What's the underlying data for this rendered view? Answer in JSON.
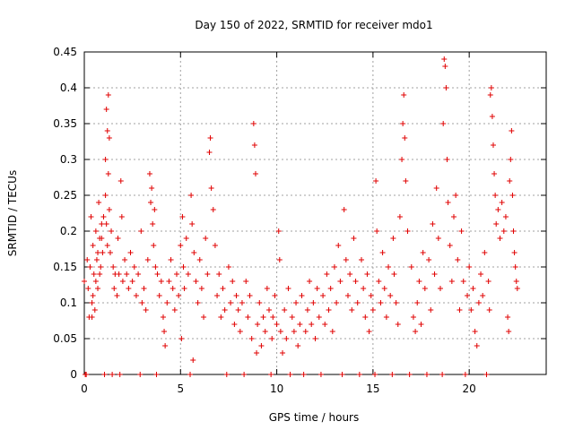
{
  "chart_data": {
    "type": "scatter",
    "title": "Day 150 of 2022, SRMTID for receiver mdo1",
    "xlabel": "GPS time / hours",
    "ylabel": "SRMTID / TECUs",
    "xlim": [
      0,
      24
    ],
    "ylim": [
      0,
      0.45
    ],
    "xticks": [
      0,
      5,
      10,
      15,
      20
    ],
    "yticks": [
      0,
      0.05,
      0.1,
      0.15,
      0.2,
      0.25,
      0.3,
      0.35,
      0.4,
      0.45
    ],
    "xtick_labels": [
      "0",
      "5",
      "10",
      "15",
      "20"
    ],
    "ytick_labels": [
      "0",
      "0.05",
      "0.1",
      "0.15",
      "0.2",
      "0.25",
      "0.3",
      "0.35",
      "0.4",
      "0.45"
    ],
    "grid": true,
    "marker": "+",
    "color": "#e00000",
    "series": [
      {
        "name": "SRMTID",
        "points": [
          [
            0.0,
            0.13
          ],
          [
            0.05,
            0.0
          ],
          [
            0.1,
            0.0
          ],
          [
            0.15,
            0.16
          ],
          [
            0.2,
            0.12
          ],
          [
            0.25,
            0.08
          ],
          [
            0.3,
            0.15
          ],
          [
            0.35,
            0.22
          ],
          [
            0.4,
            0.1
          ],
          [
            0.45,
            0.18
          ],
          [
            0.5,
            0.14
          ],
          [
            0.55,
            0.09
          ],
          [
            0.6,
            0.2
          ],
          [
            0.65,
            0.16
          ],
          [
            0.7,
            0.12
          ],
          [
            0.75,
            0.24
          ],
          [
            0.8,
            0.19
          ],
          [
            0.85,
            0.15
          ],
          [
            0.9,
            0.21
          ],
          [
            0.95,
            0.17
          ],
          [
            0.4,
            0.08
          ],
          [
            0.45,
            0.11
          ],
          [
            0.6,
            0.13
          ],
          [
            0.7,
            0.17
          ],
          [
            0.8,
            0.14
          ],
          [
            0.9,
            0.19
          ],
          [
            1.0,
            0.22
          ],
          [
            1.05,
            0.0
          ],
          [
            1.1,
            0.3
          ],
          [
            1.15,
            0.37
          ],
          [
            1.2,
            0.34
          ],
          [
            1.25,
            0.39
          ],
          [
            1.3,
            0.33
          ],
          [
            1.1,
            0.25
          ],
          [
            1.15,
            0.21
          ],
          [
            1.2,
            0.18
          ],
          [
            1.25,
            0.28
          ],
          [
            1.3,
            0.23
          ],
          [
            1.35,
            0.17
          ],
          [
            1.4,
            0.2
          ],
          [
            1.45,
            0.0
          ],
          [
            1.5,
            0.15
          ],
          [
            1.55,
            0.12
          ],
          [
            1.6,
            0.14
          ],
          [
            1.7,
            0.11
          ],
          [
            1.75,
            0.19
          ],
          [
            1.8,
            0.14
          ],
          [
            1.85,
            0.0
          ],
          [
            1.9,
            0.27
          ],
          [
            1.95,
            0.22
          ],
          [
            2.0,
            0.13
          ],
          [
            2.1,
            0.16
          ],
          [
            2.2,
            0.14
          ],
          [
            2.3,
            0.12
          ],
          [
            2.4,
            0.17
          ],
          [
            2.5,
            0.13
          ],
          [
            2.6,
            0.15
          ],
          [
            2.7,
            0.11
          ],
          [
            2.8,
            0.14
          ],
          [
            2.9,
            0.0
          ],
          [
            2.95,
            0.2
          ],
          [
            3.0,
            0.1
          ],
          [
            3.1,
            0.12
          ],
          [
            3.2,
            0.09
          ],
          [
            3.3,
            0.16
          ],
          [
            3.4,
            0.28
          ],
          [
            3.45,
            0.24
          ],
          [
            3.5,
            0.26
          ],
          [
            3.55,
            0.21
          ],
          [
            3.6,
            0.18
          ],
          [
            3.65,
            0.23
          ],
          [
            3.7,
            0.15
          ],
          [
            3.75,
            0.0
          ],
          [
            3.8,
            0.14
          ],
          [
            3.9,
            0.11
          ],
          [
            4.0,
            0.13
          ],
          [
            4.1,
            0.08
          ],
          [
            4.15,
            0.06
          ],
          [
            4.2,
            0.04
          ],
          [
            4.3,
            0.1
          ],
          [
            4.4,
            0.13
          ],
          [
            4.5,
            0.16
          ],
          [
            4.6,
            0.12
          ],
          [
            4.7,
            0.09
          ],
          [
            4.8,
            0.14
          ],
          [
            4.9,
            0.11
          ],
          [
            5.0,
            0.18
          ],
          [
            5.05,
            0.05
          ],
          [
            5.1,
            0.22
          ],
          [
            5.15,
            0.15
          ],
          [
            5.2,
            0.12
          ],
          [
            5.3,
            0.19
          ],
          [
            5.4,
            0.14
          ],
          [
            5.5,
            0.0
          ],
          [
            5.55,
            0.25
          ],
          [
            5.6,
            0.21
          ],
          [
            5.65,
            0.02
          ],
          [
            5.7,
            0.17
          ],
          [
            5.8,
            0.13
          ],
          [
            5.9,
            0.1
          ],
          [
            6.0,
            0.16
          ],
          [
            6.1,
            0.12
          ],
          [
            6.2,
            0.08
          ],
          [
            6.3,
            0.19
          ],
          [
            6.4,
            0.14
          ],
          [
            6.5,
            0.31
          ],
          [
            6.55,
            0.33
          ],
          [
            6.6,
            0.26
          ],
          [
            6.7,
            0.23
          ],
          [
            6.8,
            0.18
          ],
          [
            6.9,
            0.11
          ],
          [
            7.0,
            0.14
          ],
          [
            7.1,
            0.08
          ],
          [
            7.2,
            0.12
          ],
          [
            7.3,
            0.09
          ],
          [
            7.4,
            0.0
          ],
          [
            7.5,
            0.15
          ],
          [
            7.6,
            0.1
          ],
          [
            7.7,
            0.13
          ],
          [
            7.8,
            0.07
          ],
          [
            7.9,
            0.11
          ],
          [
            8.0,
            0.09
          ],
          [
            8.1,
            0.06
          ],
          [
            8.2,
            0.1
          ],
          [
            8.3,
            0.0
          ],
          [
            8.4,
            0.13
          ],
          [
            8.5,
            0.08
          ],
          [
            8.6,
            0.11
          ],
          [
            8.7,
            0.05
          ],
          [
            8.8,
            0.35
          ],
          [
            8.85,
            0.32
          ],
          [
            8.9,
            0.28
          ],
          [
            8.95,
            0.03
          ],
          [
            9.0,
            0.07
          ],
          [
            9.1,
            0.1
          ],
          [
            9.2,
            0.04
          ],
          [
            9.3,
            0.08
          ],
          [
            9.4,
            0.06
          ],
          [
            9.5,
            0.12
          ],
          [
            9.6,
            0.09
          ],
          [
            9.7,
            0.0
          ],
          [
            9.75,
            0.05
          ],
          [
            9.8,
            0.08
          ],
          [
            9.9,
            0.11
          ],
          [
            10.0,
            0.07
          ],
          [
            10.1,
            0.2
          ],
          [
            10.15,
            0.16
          ],
          [
            10.2,
            0.06
          ],
          [
            10.3,
            0.03
          ],
          [
            10.4,
            0.09
          ],
          [
            10.5,
            0.05
          ],
          [
            10.6,
            0.12
          ],
          [
            10.7,
            0.0
          ],
          [
            10.8,
            0.08
          ],
          [
            10.9,
            0.06
          ],
          [
            11.0,
            0.1
          ],
          [
            11.1,
            0.04
          ],
          [
            11.2,
            0.07
          ],
          [
            11.3,
            0.11
          ],
          [
            11.4,
            0.0
          ],
          [
            11.5,
            0.06
          ],
          [
            11.6,
            0.09
          ],
          [
            11.7,
            0.13
          ],
          [
            11.8,
            0.07
          ],
          [
            11.9,
            0.1
          ],
          [
            12.0,
            0.05
          ],
          [
            12.1,
            0.12
          ],
          [
            12.2,
            0.08
          ],
          [
            12.3,
            0.0
          ],
          [
            12.4,
            0.11
          ],
          [
            12.5,
            0.07
          ],
          [
            12.6,
            0.14
          ],
          [
            12.7,
            0.09
          ],
          [
            12.8,
            0.12
          ],
          [
            12.9,
            0.06
          ],
          [
            13.0,
            0.15
          ],
          [
            13.1,
            0.1
          ],
          [
            13.2,
            0.18
          ],
          [
            13.3,
            0.13
          ],
          [
            13.4,
            0.0
          ],
          [
            13.5,
            0.23
          ],
          [
            13.6,
            0.16
          ],
          [
            13.7,
            0.11
          ],
          [
            13.8,
            0.14
          ],
          [
            13.9,
            0.09
          ],
          [
            14.0,
            0.19
          ],
          [
            14.1,
            0.13
          ],
          [
            14.2,
            0.1
          ],
          [
            14.3,
            0.0
          ],
          [
            14.4,
            0.16
          ],
          [
            14.5,
            0.12
          ],
          [
            14.6,
            0.08
          ],
          [
            14.7,
            0.14
          ],
          [
            14.8,
            0.06
          ],
          [
            14.9,
            0.11
          ],
          [
            15.0,
            0.09
          ],
          [
            15.1,
            0.0
          ],
          [
            15.15,
            0.27
          ],
          [
            15.2,
            0.2
          ],
          [
            15.3,
            0.13
          ],
          [
            15.4,
            0.1
          ],
          [
            15.5,
            0.17
          ],
          [
            15.6,
            0.12
          ],
          [
            15.7,
            0.08
          ],
          [
            15.8,
            0.15
          ],
          [
            15.9,
            0.11
          ],
          [
            16.0,
            0.0
          ],
          [
            16.05,
            0.19
          ],
          [
            16.1,
            0.14
          ],
          [
            16.2,
            0.1
          ],
          [
            16.3,
            0.07
          ],
          [
            16.4,
            0.22
          ],
          [
            16.5,
            0.3
          ],
          [
            16.55,
            0.35
          ],
          [
            16.6,
            0.39
          ],
          [
            16.65,
            0.33
          ],
          [
            16.7,
            0.27
          ],
          [
            16.8,
            0.2
          ],
          [
            16.9,
            0.0
          ],
          [
            17.0,
            0.15
          ],
          [
            17.1,
            0.08
          ],
          [
            17.2,
            0.06
          ],
          [
            17.3,
            0.1
          ],
          [
            17.4,
            0.13
          ],
          [
            17.5,
            0.07
          ],
          [
            17.6,
            0.17
          ],
          [
            17.7,
            0.12
          ],
          [
            17.8,
            0.0
          ],
          [
            17.9,
            0.16
          ],
          [
            18.0,
            0.09
          ],
          [
            18.1,
            0.21
          ],
          [
            18.2,
            0.14
          ],
          [
            18.3,
            0.26
          ],
          [
            18.4,
            0.19
          ],
          [
            18.5,
            0.12
          ],
          [
            18.6,
            0.0
          ],
          [
            18.65,
            0.35
          ],
          [
            18.7,
            0.44
          ],
          [
            18.75,
            0.43
          ],
          [
            18.8,
            0.4
          ],
          [
            18.85,
            0.3
          ],
          [
            18.9,
            0.24
          ],
          [
            19.0,
            0.18
          ],
          [
            19.1,
            0.13
          ],
          [
            19.2,
            0.22
          ],
          [
            19.3,
            0.25
          ],
          [
            19.4,
            0.16
          ],
          [
            19.5,
            0.09
          ],
          [
            19.6,
            0.2
          ],
          [
            19.7,
            0.13
          ],
          [
            19.8,
            0.0
          ],
          [
            19.9,
            0.11
          ],
          [
            20.0,
            0.15
          ],
          [
            20.1,
            0.09
          ],
          [
            20.2,
            0.12
          ],
          [
            20.3,
            0.06
          ],
          [
            20.4,
            0.04
          ],
          [
            20.5,
            0.1
          ],
          [
            20.6,
            0.14
          ],
          [
            20.7,
            0.11
          ],
          [
            20.8,
            0.17
          ],
          [
            20.9,
            0.0
          ],
          [
            21.0,
            0.13
          ],
          [
            21.05,
            0.09
          ],
          [
            21.1,
            0.39
          ],
          [
            21.15,
            0.4
          ],
          [
            21.2,
            0.36
          ],
          [
            21.25,
            0.32
          ],
          [
            21.3,
            0.28
          ],
          [
            21.35,
            0.25
          ],
          [
            21.4,
            0.21
          ],
          [
            21.5,
            0.23
          ],
          [
            21.6,
            0.19
          ],
          [
            21.7,
            0.24
          ],
          [
            21.8,
            0.2
          ],
          [
            21.9,
            0.22
          ],
          [
            22.0,
            0.08
          ],
          [
            22.05,
            0.06
          ],
          [
            22.1,
            0.27
          ],
          [
            22.15,
            0.3
          ],
          [
            22.2,
            0.34
          ],
          [
            22.25,
            0.25
          ],
          [
            22.3,
            0.2
          ],
          [
            22.35,
            0.17
          ],
          [
            22.4,
            0.15
          ],
          [
            22.45,
            0.13
          ],
          [
            22.5,
            0.12
          ]
        ]
      }
    ]
  }
}
